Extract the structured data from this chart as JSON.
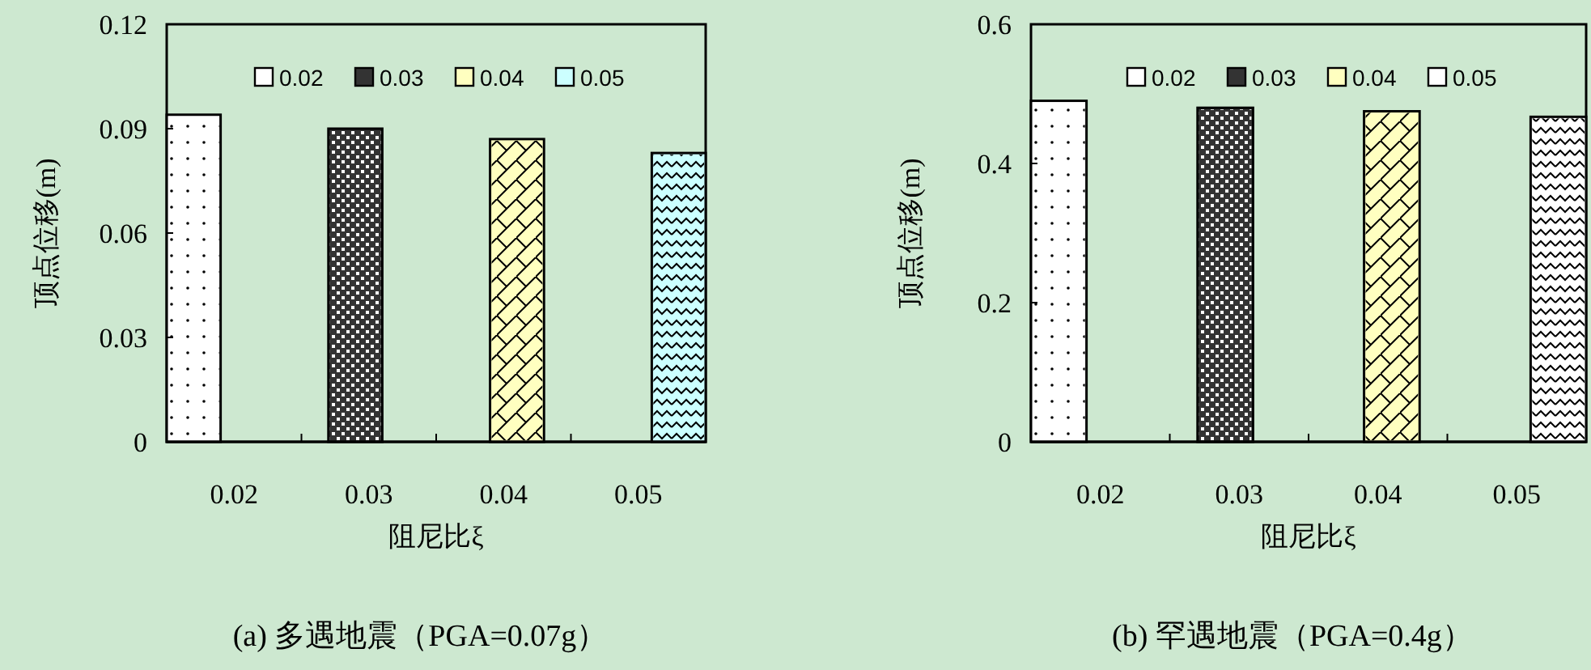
{
  "chart_data": [
    {
      "type": "bar",
      "title": "(a)  多遇地震（PGA=0.07g）",
      "xlabel": "阻尼比ξ",
      "ylabel": "顶点位移(m)",
      "categories": [
        "0.02",
        "0.03",
        "0.04",
        "0.05"
      ],
      "series": [
        {
          "name": "0.02",
          "color": "#ffffff",
          "values": [
            0.094,
            null,
            null,
            null
          ]
        },
        {
          "name": "0.03",
          "color": "#333333",
          "values": [
            null,
            0.09,
            null,
            null
          ]
        },
        {
          "name": "0.04",
          "color": "#ffffc0",
          "values": [
            null,
            null,
            0.087,
            null
          ]
        },
        {
          "name": "0.05",
          "color": "#ccffff",
          "values": [
            null,
            null,
            null,
            0.083
          ]
        }
      ],
      "ylim": [
        0,
        0.12
      ],
      "yticks": [
        0,
        0.03,
        0.06,
        0.09,
        0.12
      ],
      "grid": false,
      "legend": "top"
    },
    {
      "type": "bar",
      "title": "(b)  罕遇地震（PGA=0.4g）",
      "xlabel": "阻尼比ξ",
      "ylabel": "顶点位移(m)",
      "categories": [
        "0.02",
        "0.03",
        "0.04",
        "0.05"
      ],
      "series": [
        {
          "name": "0.02",
          "color": "#ffffff",
          "values": [
            0.49,
            null,
            null,
            null
          ]
        },
        {
          "name": "0.03",
          "color": "#333333",
          "values": [
            null,
            0.48,
            null,
            null
          ]
        },
        {
          "name": "0.04",
          "color": "#ffffc0",
          "values": [
            null,
            null,
            0.475,
            null
          ]
        },
        {
          "name": "0.05",
          "color": "#ffffff",
          "values": [
            null,
            null,
            null,
            0.467
          ]
        }
      ],
      "ylim": [
        0,
        0.6
      ],
      "yticks": [
        0,
        0.2,
        0.4,
        0.6
      ],
      "grid": false,
      "legend": "top"
    }
  ]
}
